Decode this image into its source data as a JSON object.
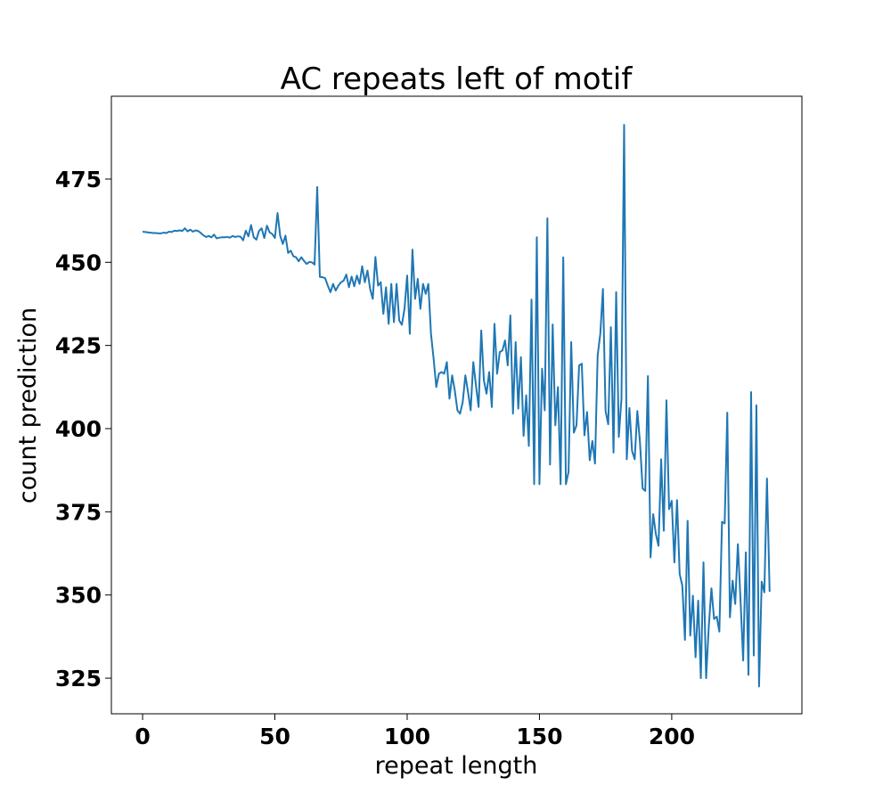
{
  "chart_data": {
    "type": "line",
    "title": "AC repeats left of motif",
    "xlabel": "repeat length",
    "ylabel": "count prediction",
    "color": "#1f77b4",
    "xlim": [
      -11.8,
      249.2
    ],
    "ylim": [
      314.3,
      499.9
    ],
    "xticks": [
      0,
      50,
      100,
      150,
      200
    ],
    "yticks": [
      325,
      350,
      375,
      400,
      425,
      450,
      475
    ],
    "x": [
      0,
      1,
      2,
      3,
      4,
      5,
      6,
      7,
      8,
      9,
      10,
      11,
      12,
      13,
      14,
      15,
      16,
      17,
      18,
      19,
      20,
      21,
      22,
      23,
      24,
      25,
      26,
      27,
      28,
      29,
      30,
      31,
      32,
      33,
      34,
      35,
      36,
      37,
      38,
      39,
      40,
      41,
      42,
      43,
      44,
      45,
      46,
      47,
      48,
      49,
      50,
      51,
      52,
      53,
      54,
      55,
      56,
      57,
      58,
      59,
      60,
      61,
      62,
      63,
      64,
      65,
      66,
      67,
      68,
      69,
      70,
      71,
      72,
      73,
      74,
      75,
      76,
      77,
      78,
      79,
      80,
      81,
      82,
      83,
      84,
      85,
      86,
      87,
      88,
      89,
      90,
      91,
      92,
      93,
      94,
      95,
      96,
      97,
      98,
      99,
      100,
      101,
      102,
      103,
      104,
      105,
      106,
      107,
      108,
      109,
      110,
      111,
      112,
      113,
      114,
      115,
      116,
      117,
      118,
      119,
      120,
      121,
      122,
      123,
      124,
      125,
      126,
      127,
      128,
      129,
      130,
      131,
      132,
      133,
      134,
      135,
      136,
      137,
      138,
      139,
      140,
      141,
      142,
      143,
      144,
      145,
      146,
      147,
      148,
      149,
      150,
      151,
      152,
      153,
      154,
      155,
      156,
      157,
      158,
      159,
      160,
      161,
      162,
      163,
      164,
      165,
      166,
      167,
      168,
      169,
      170,
      171,
      172,
      173,
      174,
      175,
      176,
      177,
      178,
      179,
      180,
      181,
      182,
      183,
      184,
      185,
      186,
      187,
      188,
      189,
      190,
      191,
      192,
      193,
      194,
      195,
      196,
      197,
      198,
      199,
      200,
      201,
      202,
      203,
      204,
      205,
      206,
      207,
      208,
      209,
      210,
      211,
      212,
      213,
      214,
      215,
      216,
      217,
      218,
      219,
      220,
      221,
      222,
      223,
      224,
      225,
      226,
      227,
      228,
      229,
      230,
      231,
      232,
      233,
      234,
      235,
      236,
      237
    ],
    "values": [
      459.2,
      459.1,
      459,
      458.9,
      458.8,
      458.8,
      458.7,
      458.7,
      458.9,
      458.8,
      459.2,
      459.1,
      459.5,
      459.4,
      459.6,
      459.4,
      460.2,
      459.3,
      459.8,
      459.2,
      459.6,
      459.4,
      458.8,
      458.1,
      457.6,
      457.9,
      457.5,
      458.3,
      457.2,
      457.4,
      457.5,
      457.5,
      457.6,
      457.4,
      457.9,
      457.6,
      457.8,
      457.7,
      456.6,
      459.5,
      457.8,
      461.2,
      457.5,
      456.8,
      459.4,
      460.2,
      457.3,
      461,
      459,
      458.5,
      457.3,
      464.8,
      458,
      455.5,
      458,
      452.8,
      453.5,
      451.8,
      451.5,
      450.3,
      451.5,
      450.4,
      449.5,
      450.1,
      450,
      449.3,
      472.6,
      445.6,
      445.5,
      445.2,
      443,
      441,
      443.5,
      441.5,
      443,
      444,
      444.5,
      446.3,
      442.5,
      445.7,
      442.8,
      446,
      443.5,
      448.8,
      444,
      447.5,
      442,
      439,
      451.6,
      443,
      444,
      434.5,
      442.5,
      431.5,
      443.5,
      432,
      443.5,
      432.5,
      431.2,
      436,
      446,
      428.5,
      453.8,
      439,
      445,
      436,
      443.5,
      440.5,
      443.5,
      428.5,
      421,
      412.5,
      416.5,
      417,
      416.5,
      420,
      409,
      416,
      411.5,
      405.5,
      404.5,
      408,
      416,
      411,
      405.5,
      420,
      413,
      406.5,
      429.5,
      414.5,
      410.5,
      417,
      406.5,
      431.5,
      416.5,
      423,
      423.5,
      426.5,
      419,
      434,
      404.5,
      426,
      406,
      421.5,
      397.8,
      410,
      394.8,
      438.8,
      383.3,
      457.5,
      383.3,
      418,
      405.5,
      463.2,
      389.2,
      431.3,
      401,
      412.5,
      383.3,
      451.5,
      383.3,
      387,
      426,
      398.8,
      401,
      419,
      419.5,
      398,
      405,
      390.5,
      396.3,
      389.5,
      422,
      428.5,
      442,
      405.3,
      401.3,
      430.5,
      392.8,
      441,
      397.5,
      409,
      491.3,
      390.8,
      406.2,
      393.3,
      390.8,
      405.3,
      395.8,
      382,
      381.3,
      415.8,
      361.3,
      374.3,
      368.3,
      364.8,
      390.8,
      369.3,
      408.5,
      375.8,
      378.3,
      359.8,
      378.5,
      356.3,
      352.8,
      336.5,
      372.3,
      337.8,
      349.8,
      331.3,
      348.3,
      325,
      359.8,
      325,
      340.5,
      352,
      342.8,
      343.5,
      339,
      372,
      371.5,
      404.8,
      343.3,
      354.3,
      347.3,
      365.3,
      348.5,
      330.3,
      362.8,
      326,
      411,
      331.8,
      407,
      322.5,
      354,
      350.8,
      385,
      351
    ]
  }
}
